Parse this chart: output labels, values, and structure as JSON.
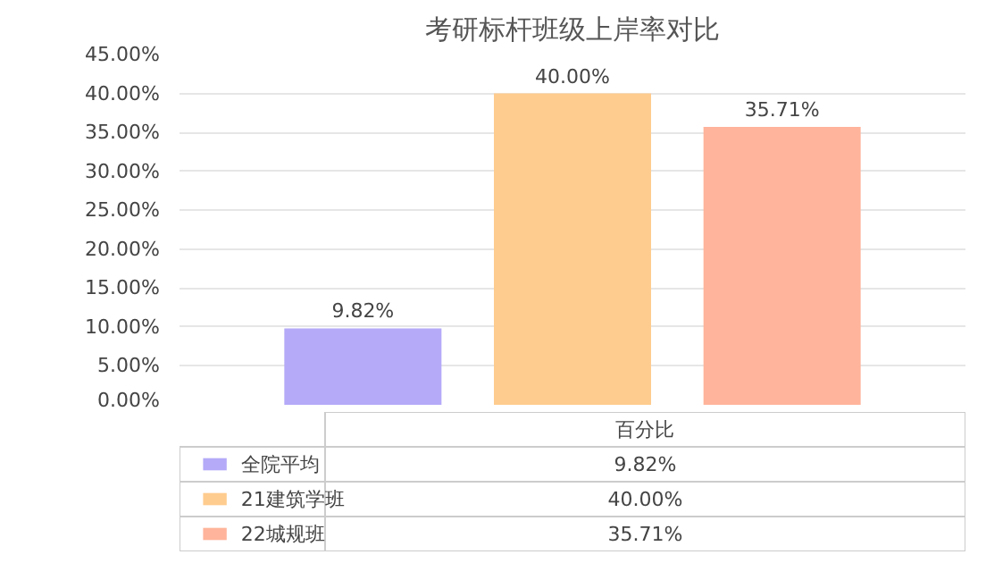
{
  "chart_data": {
    "type": "bar",
    "title": "考研标杆班级上岸率对比",
    "categories": [
      "百分比"
    ],
    "series": [
      {
        "name": "全院平均",
        "color": "#b4aaf8",
        "values": [
          9.82
        ],
        "value_labels": [
          "9.82%"
        ]
      },
      {
        "name": "21建筑学班",
        "color": "#ffcc8f",
        "values": [
          40.0
        ],
        "value_labels": [
          "40.00%"
        ]
      },
      {
        "name": "22城规班",
        "color": "#ffb49b",
        "values": [
          35.71
        ],
        "value_labels": [
          "35.71%"
        ]
      }
    ],
    "ylim": [
      0,
      45
    ],
    "yticks": [
      {
        "value": 0,
        "label": "0.00%"
      },
      {
        "value": 5,
        "label": "5.00%"
      },
      {
        "value": 10,
        "label": "10.00%"
      },
      {
        "value": 15,
        "label": "15.00%"
      },
      {
        "value": 20,
        "label": "20.00%"
      },
      {
        "value": 25,
        "label": "25.00%"
      },
      {
        "value": 30,
        "label": "30.00%"
      },
      {
        "value": 35,
        "label": "35.00%"
      },
      {
        "value": 40,
        "label": "40.00%"
      },
      {
        "value": 45,
        "label": "45.00%"
      }
    ],
    "grid": "y",
    "legend": "bottom"
  }
}
